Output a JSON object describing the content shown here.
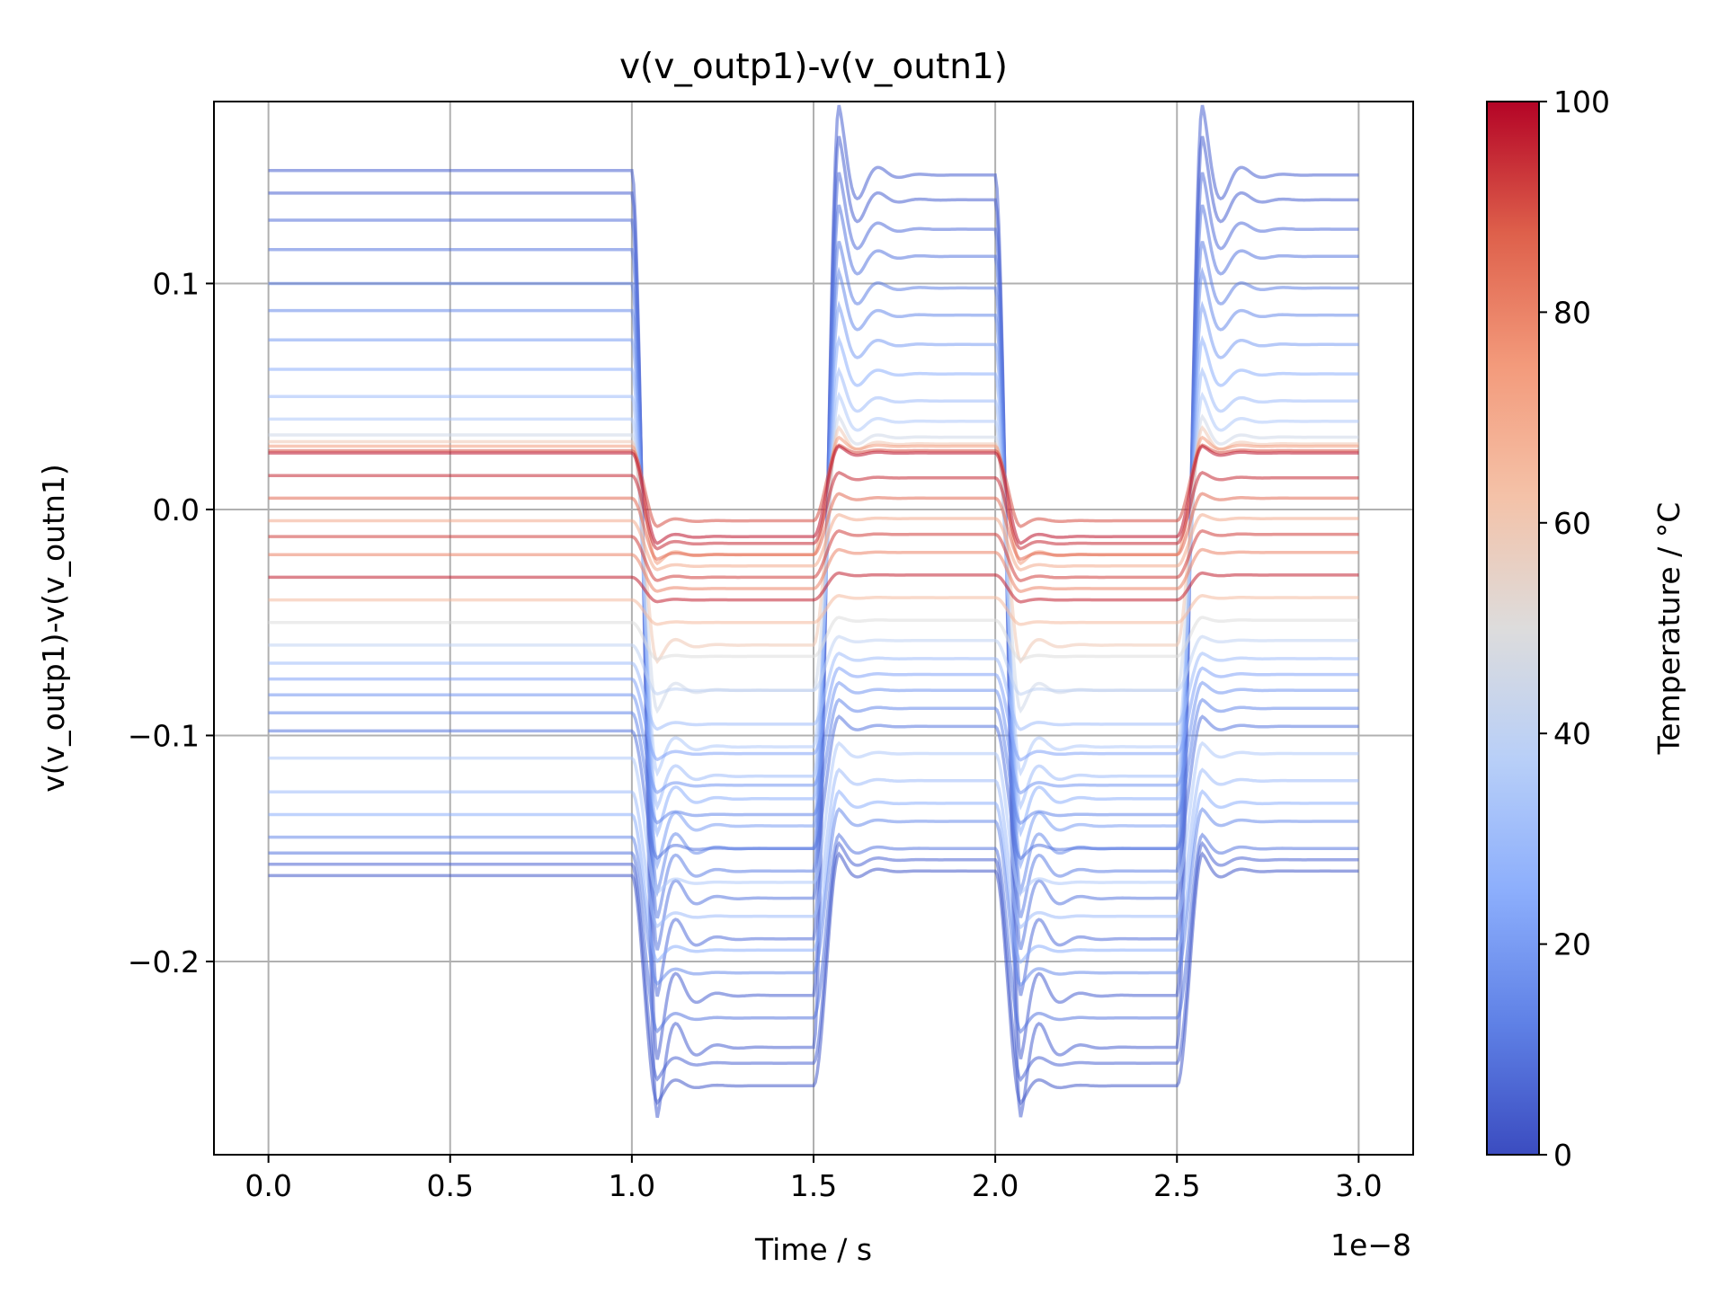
{
  "chart_data": {
    "type": "line",
    "title": "v(v_outp1)-v(v_outn1)",
    "xlabel": "Time / s",
    "ylabel": "v(v_outp1)-v(v_outn1)",
    "x_offset_text": "1e−8",
    "xlim": [
      -0.15,
      3.15
    ],
    "ylim": [
      -0.2855,
      0.1805
    ],
    "x_ticks": [
      0.0,
      0.5,
      1.0,
      1.5,
      2.0,
      2.5,
      3.0
    ],
    "x_tick_labels": [
      "0.0",
      "0.5",
      "1.0",
      "1.5",
      "2.0",
      "2.5",
      "3.0"
    ],
    "y_ticks": [
      -0.2,
      -0.1,
      0.0,
      0.1
    ],
    "y_tick_labels": [
      "−0.2",
      "−0.1",
      "0.0",
      "0.1"
    ],
    "grid": true,
    "colormap": "coolwarm",
    "colorbar": {
      "label": "Temperature / °C",
      "range": [
        0,
        100
      ],
      "ticks": [
        0,
        20,
        40,
        60,
        80,
        100
      ],
      "tick_labels": [
        "0",
        "20",
        "40",
        "60",
        "80",
        "100"
      ],
      "stops": [
        "#3b4cc0",
        "#5f81e6",
        "#8caefc",
        "#b8cff8",
        "#dddcdc",
        "#f4c2a8",
        "#f39a7b",
        "#de604b",
        "#b40426"
      ]
    },
    "waveform": {
      "description_x_units": "1e-8 s",
      "segments": [
        {
          "t_start": 0.0,
          "t_end": 1.0,
          "state": "initial"
        },
        {
          "t_start": 1.0,
          "t_end": 1.5,
          "state": "low"
        },
        {
          "t_start": 1.5,
          "t_end": 2.0,
          "state": "high"
        },
        {
          "t_start": 2.0,
          "t_end": 2.5,
          "state": "low"
        },
        {
          "t_start": 2.5,
          "t_end": 3.0,
          "state": "high"
        }
      ]
    },
    "series": [
      {
        "temperature": 5,
        "initial": 0.15,
        "high": 0.148,
        "low": -0.238
      },
      {
        "temperature": 5,
        "initial": 0.14,
        "high": 0.137,
        "low": -0.215
      },
      {
        "temperature": 8,
        "initial": 0.128,
        "high": 0.124,
        "low": -0.19
      },
      {
        "temperature": 10,
        "initial": 0.115,
        "high": 0.112,
        "low": -0.172
      },
      {
        "temperature": 12,
        "initial": 0.1,
        "high": 0.098,
        "low": -0.16
      },
      {
        "temperature": 15,
        "initial": 0.088,
        "high": 0.086,
        "low": -0.15
      },
      {
        "temperature": 20,
        "initial": 0.075,
        "high": 0.073,
        "low": -0.14
      },
      {
        "temperature": 25,
        "initial": 0.062,
        "high": 0.06,
        "low": -0.128
      },
      {
        "temperature": 30,
        "initial": 0.05,
        "high": 0.048,
        "low": -0.118
      },
      {
        "temperature": 35,
        "initial": 0.04,
        "high": 0.039,
        "low": -0.105
      },
      {
        "temperature": 45,
        "initial": 0.033,
        "high": 0.032,
        "low": -0.08
      },
      {
        "temperature": 60,
        "initial": 0.03,
        "high": 0.029,
        "low": -0.06
      },
      {
        "temperature": 75,
        "initial": 0.028,
        "high": 0.028,
        "low": -0.02
      },
      {
        "temperature": 90,
        "initial": 0.026,
        "high": 0.026,
        "low": -0.005
      },
      {
        "temperature": 98,
        "initial": 0.025,
        "high": 0.025,
        "low": -0.012
      },
      {
        "temperature": 95,
        "initial": 0.015,
        "high": 0.014,
        "low": -0.015
      },
      {
        "temperature": 85,
        "initial": 0.005,
        "high": 0.005,
        "low": -0.02
      },
      {
        "temperature": 70,
        "initial": -0.005,
        "high": -0.004,
        "low": -0.025
      },
      {
        "temperature": 92,
        "initial": -0.012,
        "high": -0.011,
        "low": -0.03
      },
      {
        "temperature": 80,
        "initial": -0.02,
        "high": -0.019,
        "low": -0.035
      },
      {
        "temperature": 96,
        "initial": -0.03,
        "high": -0.029,
        "low": -0.04
      },
      {
        "temperature": 65,
        "initial": -0.04,
        "high": -0.039,
        "low": -0.05
      },
      {
        "temperature": 50,
        "initial": -0.05,
        "high": -0.049,
        "low": -0.065
      },
      {
        "temperature": 40,
        "initial": -0.06,
        "high": -0.058,
        "low": -0.08
      },
      {
        "temperature": 30,
        "initial": -0.068,
        "high": -0.066,
        "low": -0.095
      },
      {
        "temperature": 22,
        "initial": -0.075,
        "high": -0.073,
        "low": -0.108
      },
      {
        "temperature": 18,
        "initial": -0.082,
        "high": -0.08,
        "low": -0.122
      },
      {
        "temperature": 14,
        "initial": -0.09,
        "high": -0.088,
        "low": -0.135
      },
      {
        "temperature": 10,
        "initial": -0.098,
        "high": -0.096,
        "low": -0.15
      },
      {
        "temperature": 35,
        "initial": -0.11,
        "high": -0.108,
        "low": -0.165
      },
      {
        "temperature": 30,
        "initial": -0.125,
        "high": -0.12,
        "low": -0.18
      },
      {
        "temperature": 25,
        "initial": -0.135,
        "high": -0.13,
        "low": -0.195
      },
      {
        "temperature": 15,
        "initial": -0.145,
        "high": -0.138,
        "low": -0.205
      },
      {
        "temperature": 10,
        "initial": -0.152,
        "high": -0.15,
        "low": -0.225
      },
      {
        "temperature": 6,
        "initial": -0.157,
        "high": -0.155,
        "low": -0.245
      },
      {
        "temperature": 3,
        "initial": -0.162,
        "high": -0.16,
        "low": -0.255
      }
    ]
  }
}
